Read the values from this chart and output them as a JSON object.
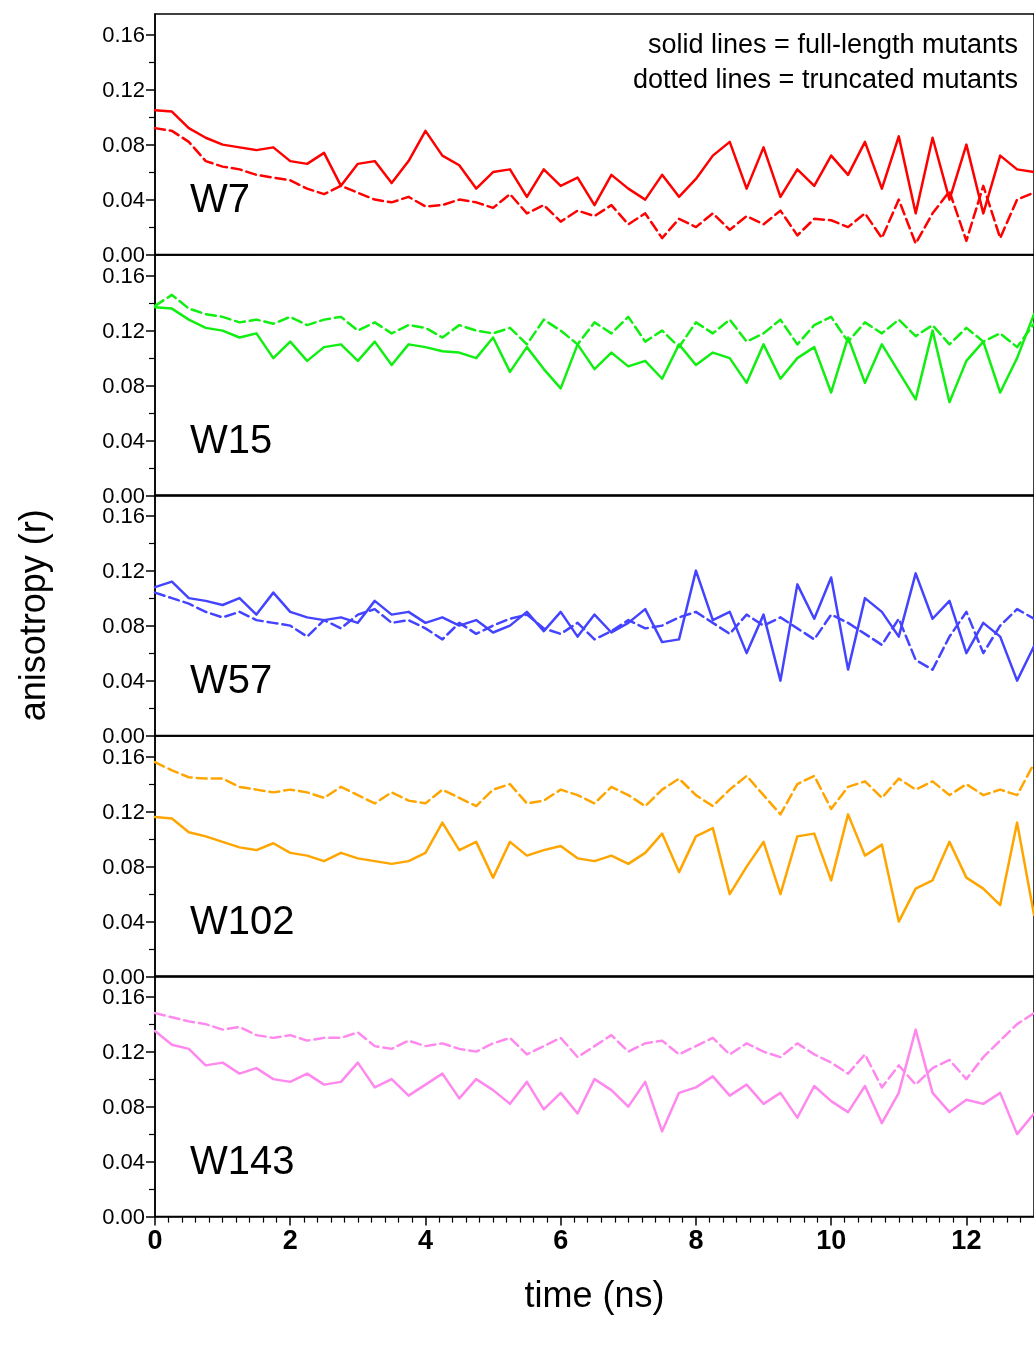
{
  "chart_data": [
    {
      "type": "line",
      "annotations": [
        "W7",
        "solid lines = full-length mutants",
        "dotted lines = truncated mutants"
      ],
      "xlim": [
        0,
        13
      ],
      "ylim": [
        0,
        0.175
      ],
      "yticks": [
        {
          "value": 0,
          "label": "0.00"
        },
        {
          "value": 0.04,
          "label": "0.04"
        },
        {
          "value": 0.08,
          "label": "0.08"
        },
        {
          "value": 0.12,
          "label": "0.12"
        },
        {
          "value": 0.16,
          "label": "0.16"
        }
      ],
      "tick_labels": "y",
      "x": [
        0,
        0.25,
        0.5,
        0.75,
        1,
        1.25,
        1.5,
        1.75,
        2,
        2.25,
        2.5,
        2.75,
        3,
        3.25,
        3.5,
        3.75,
        4,
        4.25,
        4.5,
        4.75,
        5,
        5.25,
        5.5,
        5.75,
        6,
        6.25,
        6.5,
        6.75,
        7,
        7.25,
        7.5,
        7.75,
        8,
        8.25,
        8.5,
        8.75,
        9,
        9.25,
        9.5,
        9.75,
        10,
        10.25,
        10.5,
        10.75,
        11,
        11.25,
        11.5,
        11.75,
        12,
        12.25,
        12.5,
        12.75,
        13
      ],
      "series": [
        {
          "color": "#ff0000",
          "line_style": "solid",
          "values": [
            0.105,
            0.104,
            0.092,
            0.085,
            0.08,
            0.078,
            0.076,
            0.078,
            0.068,
            0.066,
            0.074,
            0.05,
            0.066,
            0.068,
            0.052,
            0.068,
            0.09,
            0.072,
            0.065,
            0.048,
            0.06,
            0.062,
            0.042,
            0.062,
            0.05,
            0.056,
            0.036,
            0.058,
            0.048,
            0.04,
            0.058,
            0.042,
            0.055,
            0.072,
            0.082,
            0.048,
            0.078,
            0.042,
            0.062,
            0.05,
            0.072,
            0.058,
            0.082,
            0.048,
            0.086,
            0.03,
            0.085,
            0.04,
            0.08,
            0.03,
            0.072,
            0.062,
            0.06
          ]
        },
        {
          "color": "#ff0000",
          "line_style": "dashed",
          "values": [
            0.092,
            0.09,
            0.082,
            0.068,
            0.064,
            0.062,
            0.058,
            0.056,
            0.054,
            0.048,
            0.044,
            0.05,
            0.045,
            0.04,
            0.038,
            0.042,
            0.035,
            0.036,
            0.04,
            0.038,
            0.034,
            0.044,
            0.03,
            0.036,
            0.024,
            0.032,
            0.028,
            0.036,
            0.022,
            0.03,
            0.012,
            0.026,
            0.02,
            0.03,
            0.018,
            0.028,
            0.022,
            0.032,
            0.014,
            0.026,
            0.025,
            0.02,
            0.03,
            0.012,
            0.04,
            0.008,
            0.03,
            0.046,
            0.01,
            0.05,
            0.012,
            0.04,
            0.045
          ]
        }
      ]
    },
    {
      "type": "line",
      "annotations": [
        "W15"
      ],
      "xlim": [
        0,
        13
      ],
      "ylim": [
        0,
        0.175
      ],
      "yticks": [
        {
          "value": 0,
          "label": "0.00"
        },
        {
          "value": 0.04,
          "label": "0.04"
        },
        {
          "value": 0.08,
          "label": "0.08"
        },
        {
          "value": 0.12,
          "label": "0.12"
        },
        {
          "value": 0.16,
          "label": "0.16"
        }
      ],
      "tick_labels": "y",
      "x": [
        0,
        0.25,
        0.5,
        0.75,
        1,
        1.25,
        1.5,
        1.75,
        2,
        2.25,
        2.5,
        2.75,
        3,
        3.25,
        3.5,
        3.75,
        4,
        4.25,
        4.5,
        4.75,
        5,
        5.25,
        5.5,
        5.75,
        6,
        6.25,
        6.5,
        6.75,
        7,
        7.25,
        7.5,
        7.75,
        8,
        8.25,
        8.5,
        8.75,
        9,
        9.25,
        9.5,
        9.75,
        10,
        10.25,
        10.5,
        10.75,
        11,
        11.25,
        11.5,
        11.75,
        12,
        12.25,
        12.5,
        12.75,
        13
      ],
      "series": [
        {
          "color": "#11ee11",
          "line_style": "solid",
          "values": [
            0.137,
            0.136,
            0.128,
            0.122,
            0.12,
            0.115,
            0.118,
            0.1,
            0.112,
            0.098,
            0.108,
            0.11,
            0.098,
            0.112,
            0.095,
            0.11,
            0.108,
            0.105,
            0.104,
            0.1,
            0.115,
            0.09,
            0.108,
            0.092,
            0.078,
            0.11,
            0.092,
            0.104,
            0.094,
            0.098,
            0.085,
            0.11,
            0.095,
            0.104,
            0.1,
            0.082,
            0.11,
            0.085,
            0.1,
            0.108,
            0.075,
            0.115,
            0.082,
            0.11,
            0.09,
            0.07,
            0.12,
            0.068,
            0.098,
            0.112,
            0.075,
            0.1,
            0.132
          ]
        },
        {
          "color": "#11ee11",
          "line_style": "dashed",
          "values": [
            0.138,
            0.146,
            0.136,
            0.132,
            0.13,
            0.126,
            0.128,
            0.125,
            0.13,
            0.124,
            0.128,
            0.13,
            0.12,
            0.126,
            0.118,
            0.124,
            0.122,
            0.115,
            0.124,
            0.12,
            0.118,
            0.122,
            0.11,
            0.128,
            0.12,
            0.11,
            0.126,
            0.118,
            0.13,
            0.112,
            0.12,
            0.108,
            0.126,
            0.118,
            0.128,
            0.112,
            0.118,
            0.128,
            0.11,
            0.124,
            0.13,
            0.112,
            0.126,
            0.118,
            0.128,
            0.116,
            0.124,
            0.11,
            0.122,
            0.112,
            0.118,
            0.108,
            0.125
          ]
        }
      ]
    },
    {
      "type": "line",
      "annotations": [
        "W57"
      ],
      "ylabel": "anisotropy (r)",
      "xlim": [
        0,
        13
      ],
      "ylim": [
        0,
        0.175
      ],
      "yticks": [
        {
          "value": 0,
          "label": "0.00"
        },
        {
          "value": 0.04,
          "label": "0.04"
        },
        {
          "value": 0.08,
          "label": "0.08"
        },
        {
          "value": 0.12,
          "label": "0.12"
        },
        {
          "value": 0.16,
          "label": "0.16"
        }
      ],
      "tick_labels": "y",
      "x": [
        0,
        0.25,
        0.5,
        0.75,
        1,
        1.25,
        1.5,
        1.75,
        2,
        2.25,
        2.5,
        2.75,
        3,
        3.25,
        3.5,
        3.75,
        4,
        4.25,
        4.5,
        4.75,
        5,
        5.25,
        5.5,
        5.75,
        6,
        6.25,
        6.5,
        6.75,
        7,
        7.25,
        7.5,
        7.75,
        8,
        8.25,
        8.5,
        8.75,
        9,
        9.25,
        9.5,
        9.75,
        10,
        10.25,
        10.5,
        10.75,
        11,
        11.25,
        11.5,
        11.75,
        12,
        12.25,
        12.5,
        12.75,
        13
      ],
      "series": [
        {
          "color": "#4444ff",
          "line_style": "solid",
          "values": [
            0.108,
            0.112,
            0.1,
            0.098,
            0.095,
            0.1,
            0.088,
            0.104,
            0.09,
            0.086,
            0.084,
            0.086,
            0.082,
            0.098,
            0.088,
            0.09,
            0.082,
            0.086,
            0.08,
            0.084,
            0.075,
            0.08,
            0.09,
            0.076,
            0.09,
            0.072,
            0.088,
            0.075,
            0.082,
            0.092,
            0.068,
            0.07,
            0.12,
            0.084,
            0.09,
            0.06,
            0.088,
            0.04,
            0.11,
            0.085,
            0.115,
            0.048,
            0.1,
            0.09,
            0.072,
            0.118,
            0.085,
            0.098,
            0.06,
            0.082,
            0.072,
            0.04,
            0.065
          ]
        },
        {
          "color": "#4444ff",
          "line_style": "dashed",
          "values": [
            0.104,
            0.1,
            0.096,
            0.09,
            0.086,
            0.09,
            0.084,
            0.082,
            0.08,
            0.072,
            0.084,
            0.078,
            0.088,
            0.092,
            0.082,
            0.084,
            0.078,
            0.07,
            0.082,
            0.074,
            0.08,
            0.085,
            0.088,
            0.078,
            0.074,
            0.082,
            0.07,
            0.076,
            0.084,
            0.078,
            0.08,
            0.086,
            0.09,
            0.082,
            0.074,
            0.088,
            0.08,
            0.086,
            0.078,
            0.07,
            0.088,
            0.082,
            0.074,
            0.066,
            0.085,
            0.055,
            0.048,
            0.072,
            0.09,
            0.06,
            0.08,
            0.092,
            0.085
          ]
        }
      ]
    },
    {
      "type": "line",
      "annotations": [
        "W102"
      ],
      "xlim": [
        0,
        13
      ],
      "ylim": [
        0,
        0.175
      ],
      "yticks": [
        {
          "value": 0,
          "label": "0.00"
        },
        {
          "value": 0.04,
          "label": "0.04"
        },
        {
          "value": 0.08,
          "label": "0.08"
        },
        {
          "value": 0.12,
          "label": "0.12"
        },
        {
          "value": 0.16,
          "label": "0.16"
        }
      ],
      "tick_labels": "y",
      "x": [
        0,
        0.25,
        0.5,
        0.75,
        1,
        1.25,
        1.5,
        1.75,
        2,
        2.25,
        2.5,
        2.75,
        3,
        3.25,
        3.5,
        3.75,
        4,
        4.25,
        4.5,
        4.75,
        5,
        5.25,
        5.5,
        5.75,
        6,
        6.25,
        6.5,
        6.75,
        7,
        7.25,
        7.5,
        7.75,
        8,
        8.25,
        8.5,
        8.75,
        9,
        9.25,
        9.5,
        9.75,
        10,
        10.25,
        10.5,
        10.75,
        11,
        11.25,
        11.5,
        11.75,
        12,
        12.25,
        12.5,
        12.75,
        13
      ],
      "series": [
        {
          "color": "#ffa500",
          "line_style": "solid",
          "values": [
            0.116,
            0.115,
            0.105,
            0.102,
            0.098,
            0.094,
            0.092,
            0.097,
            0.09,
            0.088,
            0.084,
            0.09,
            0.086,
            0.084,
            0.082,
            0.084,
            0.09,
            0.112,
            0.092,
            0.098,
            0.072,
            0.098,
            0.088,
            0.092,
            0.095,
            0.086,
            0.084,
            0.088,
            0.082,
            0.09,
            0.104,
            0.076,
            0.102,
            0.108,
            0.06,
            0.08,
            0.098,
            0.06,
            0.102,
            0.104,
            0.07,
            0.118,
            0.088,
            0.096,
            0.04,
            0.064,
            0.07,
            0.098,
            0.072,
            0.064,
            0.052,
            0.112,
            0.045
          ]
        },
        {
          "color": "#ffa500",
          "line_style": "dashed",
          "values": [
            0.156,
            0.15,
            0.145,
            0.144,
            0.144,
            0.138,
            0.136,
            0.134,
            0.136,
            0.134,
            0.13,
            0.138,
            0.132,
            0.126,
            0.134,
            0.128,
            0.126,
            0.136,
            0.13,
            0.124,
            0.136,
            0.14,
            0.126,
            0.128,
            0.136,
            0.132,
            0.126,
            0.138,
            0.132,
            0.124,
            0.136,
            0.144,
            0.132,
            0.124,
            0.136,
            0.146,
            0.132,
            0.118,
            0.14,
            0.146,
            0.122,
            0.138,
            0.142,
            0.13,
            0.144,
            0.136,
            0.142,
            0.132,
            0.14,
            0.132,
            0.136,
            0.132,
            0.155
          ]
        }
      ]
    },
    {
      "type": "line",
      "annotations": [
        "W143"
      ],
      "xlabel": "time (ns)",
      "xlim": [
        0,
        13
      ],
      "xticks": [
        0,
        2,
        4,
        6,
        8,
        10,
        12
      ],
      "ylim": [
        0,
        0.175
      ],
      "yticks": [
        {
          "value": 0,
          "label": "0.00"
        },
        {
          "value": 0.04,
          "label": "0.04"
        },
        {
          "value": 0.08,
          "label": "0.08"
        },
        {
          "value": 0.12,
          "label": "0.12"
        },
        {
          "value": 0.16,
          "label": "0.16"
        }
      ],
      "x": [
        0,
        0.25,
        0.5,
        0.75,
        1,
        1.25,
        1.5,
        1.75,
        2,
        2.25,
        2.5,
        2.75,
        3,
        3.25,
        3.5,
        3.75,
        4,
        4.25,
        4.5,
        4.75,
        5,
        5.25,
        5.5,
        5.75,
        6,
        6.25,
        6.5,
        6.75,
        7,
        7.25,
        7.5,
        7.75,
        8,
        8.25,
        8.5,
        8.75,
        9,
        9.25,
        9.5,
        9.75,
        10,
        10.25,
        10.5,
        10.75,
        11,
        11.25,
        11.5,
        11.75,
        12,
        12.25,
        12.5,
        12.75,
        13
      ],
      "series": [
        {
          "color": "#ff88ee",
          "line_style": "solid",
          "values": [
            0.135,
            0.125,
            0.122,
            0.11,
            0.112,
            0.104,
            0.108,
            0.1,
            0.098,
            0.104,
            0.096,
            0.098,
            0.112,
            0.094,
            0.1,
            0.088,
            0.096,
            0.104,
            0.086,
            0.1,
            0.092,
            0.082,
            0.098,
            0.078,
            0.09,
            0.075,
            0.1,
            0.092,
            0.08,
            0.098,
            0.062,
            0.09,
            0.094,
            0.102,
            0.088,
            0.096,
            0.082,
            0.09,
            0.072,
            0.095,
            0.084,
            0.076,
            0.095,
            0.068,
            0.09,
            0.136,
            0.09,
            0.076,
            0.085,
            0.082,
            0.09,
            0.06,
            0.075
          ]
        },
        {
          "color": "#ff88ee",
          "line_style": "dashed",
          "values": [
            0.148,
            0.145,
            0.142,
            0.14,
            0.136,
            0.138,
            0.132,
            0.13,
            0.132,
            0.128,
            0.13,
            0.13,
            0.134,
            0.124,
            0.122,
            0.128,
            0.124,
            0.126,
            0.122,
            0.12,
            0.126,
            0.13,
            0.118,
            0.124,
            0.13,
            0.116,
            0.124,
            0.132,
            0.12,
            0.126,
            0.128,
            0.118,
            0.124,
            0.13,
            0.118,
            0.126,
            0.12,
            0.116,
            0.126,
            0.118,
            0.112,
            0.104,
            0.118,
            0.094,
            0.11,
            0.096,
            0.108,
            0.114,
            0.1,
            0.116,
            0.128,
            0.14,
            0.148
          ]
        }
      ]
    }
  ]
}
